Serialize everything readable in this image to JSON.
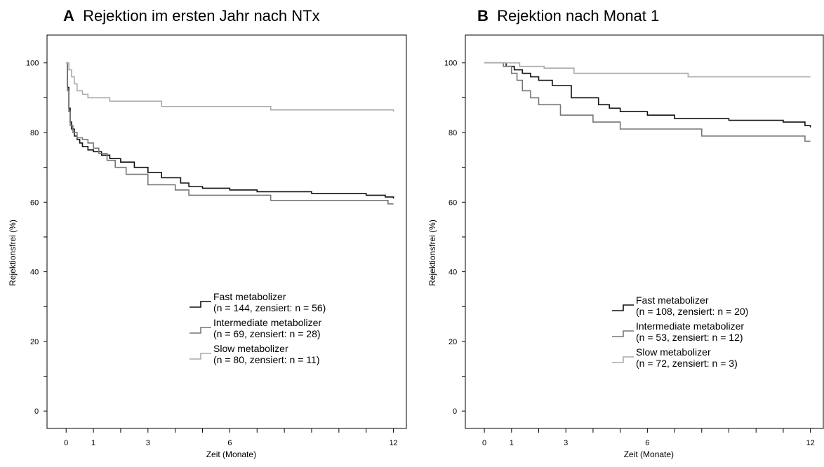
{
  "chart_data": [
    {
      "type": "line",
      "step": true,
      "panel_letter": "A",
      "title": "Rejektion im ersten Jahr nach NTx",
      "xlabel": "Zeit (Monate)",
      "ylabel": "Rejektionsfrei (%)",
      "xlim": [
        -0.7,
        12.5
      ],
      "ylim": [
        -5,
        108
      ],
      "x_ticks_labeled": [
        "0",
        "1",
        "3",
        "6",
        "12"
      ],
      "x_tick_values_labeled": [
        0,
        1,
        3,
        6,
        12
      ],
      "x_ticks_minor": [
        2,
        4,
        5,
        7,
        8,
        9,
        10,
        11
      ],
      "y_ticks_labeled": [
        "0",
        "20",
        "40",
        "60",
        "80",
        "100"
      ],
      "y_tick_values_labeled": [
        0,
        20,
        40,
        60,
        80,
        100
      ],
      "y_ticks_minor": [
        10,
        30,
        50,
        70,
        90
      ],
      "legend_position": "lower-right",
      "series": [
        {
          "color": "#111111",
          "legend_lines": [
            "Fast metabolizer",
            "(n = 144, zensiert: n = 56)"
          ],
          "x": [
            0,
            0.05,
            0.1,
            0.15,
            0.2,
            0.3,
            0.4,
            0.5,
            0.6,
            0.8,
            1.0,
            1.3,
            1.6,
            2.0,
            2.5,
            3.0,
            3.5,
            4.2,
            4.5,
            5.0,
            6.0,
            7.0,
            9.0,
            11.0,
            11.7,
            12.0
          ],
          "y": [
            100,
            93,
            87,
            83,
            81,
            79,
            78,
            77,
            76,
            75,
            74.5,
            73.5,
            72.5,
            71.5,
            70,
            68.5,
            67,
            65.5,
            64.5,
            64,
            63.5,
            63,
            62.5,
            62,
            61.5,
            61
          ]
        },
        {
          "color": "#777777",
          "legend_lines": [
            "Intermediate metabolizer",
            "(n = 69, zensiert: n = 28)"
          ],
          "x": [
            0,
            0.05,
            0.1,
            0.15,
            0.25,
            0.4,
            0.6,
            0.8,
            1.0,
            1.2,
            1.5,
            1.8,
            2.2,
            3.0,
            4.0,
            4.5,
            7.5,
            11.8,
            12.0
          ],
          "y": [
            100,
            92,
            86,
            82,
            80,
            78.5,
            78,
            77,
            75.5,
            74,
            72,
            70,
            68,
            65,
            63.5,
            62,
            60.5,
            59.5,
            59.5
          ]
        },
        {
          "color": "#aaaaaa",
          "legend_lines": [
            "Slow metabolizer",
            "(n = 80, zensiert: n = 11)"
          ],
          "x": [
            0,
            0.1,
            0.2,
            0.3,
            0.4,
            0.6,
            0.8,
            1.6,
            3.5,
            7.5,
            12.0
          ],
          "y": [
            100,
            98,
            96,
            94,
            92,
            91,
            90,
            89,
            87.5,
            86.5,
            86
          ]
        }
      ]
    },
    {
      "type": "line",
      "step": true,
      "panel_letter": "B",
      "title": "Rejektion nach Monat 1",
      "xlabel": "Zeit (Monate)",
      "ylabel": "Rejektionsfrei (%)",
      "xlim": [
        -0.7,
        12.5
      ],
      "ylim": [
        -5,
        108
      ],
      "x_ticks_labeled": [
        "0",
        "1",
        "3",
        "6",
        "12"
      ],
      "x_tick_values_labeled": [
        0,
        1,
        3,
        6,
        12
      ],
      "x_ticks_minor": [
        2,
        4,
        5,
        7,
        8,
        9,
        10,
        11
      ],
      "y_ticks_labeled": [
        "0",
        "20",
        "40",
        "60",
        "80",
        "100"
      ],
      "y_tick_values_labeled": [
        0,
        20,
        40,
        60,
        80,
        100
      ],
      "y_ticks_minor": [
        10,
        30,
        50,
        70,
        90
      ],
      "legend_position": "lower-right",
      "series": [
        {
          "color": "#111111",
          "legend_lines": [
            "Fast metabolizer",
            "(n = 108, zensiert: n = 20)"
          ],
          "x": [
            0,
            0.8,
            1.1,
            1.4,
            1.7,
            2.0,
            2.5,
            3.2,
            4.2,
            4.6,
            5.0,
            6.0,
            7.0,
            9.0,
            11.0,
            11.8,
            12.0
          ],
          "y": [
            100,
            99,
            98,
            97,
            96,
            95,
            93.5,
            90,
            88,
            87,
            86,
            85,
            84,
            83.5,
            83,
            82,
            81.5
          ]
        },
        {
          "color": "#777777",
          "legend_lines": [
            "Intermediate metabolizer",
            "(n = 53, zensiert: n = 12)"
          ],
          "x": [
            0,
            0.7,
            1.0,
            1.2,
            1.4,
            1.7,
            2.0,
            2.8,
            4.0,
            5.0,
            8.0,
            11.8,
            12.0
          ],
          "y": [
            100,
            99,
            97,
            95,
            92,
            90,
            88,
            85,
            83,
            81,
            79,
            77.5,
            77.5
          ]
        },
        {
          "color": "#aaaaaa",
          "legend_lines": [
            "Slow metabolizer",
            "(n = 72, zensiert: n = 3)"
          ],
          "x": [
            0,
            1.3,
            2.2,
            3.3,
            7.5,
            12.0
          ],
          "y": [
            100,
            99,
            98.5,
            97,
            96,
            96
          ]
        }
      ]
    }
  ]
}
